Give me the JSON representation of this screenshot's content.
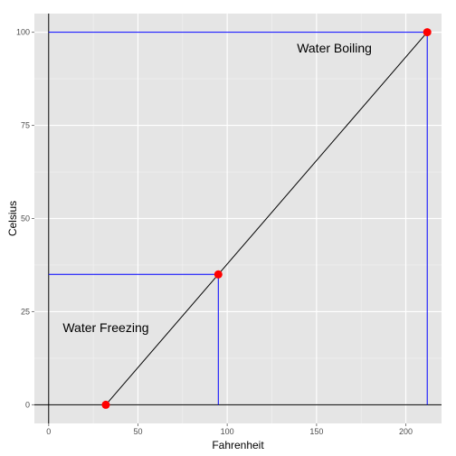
{
  "chart_data": {
    "type": "scatter",
    "title": "",
    "xlabel": "Fahrenheit",
    "ylabel": "Celsius",
    "xlim": [
      -8,
      220
    ],
    "ylim": [
      -5,
      105
    ],
    "x_ticks": [
      0,
      50,
      100,
      150,
      200
    ],
    "y_ticks": [
      0,
      25,
      50,
      75,
      100
    ],
    "x_tick_labels": [
      "0",
      "50",
      "100",
      "150",
      "200"
    ],
    "y_tick_labels": [
      "0",
      "25",
      "50",
      "75",
      "100"
    ],
    "grid": true,
    "background": "#e5e5e5",
    "point_color": "#ff0000",
    "guide_color": "#0000ff",
    "line_color": "#000000",
    "points": [
      {
        "x": 32,
        "y": 0
      },
      {
        "x": 95,
        "y": 35
      },
      {
        "x": 212,
        "y": 100
      }
    ],
    "line": [
      {
        "x": 32,
        "y": 0
      },
      {
        "x": 212,
        "y": 100
      }
    ],
    "zero_lines": {
      "x": 0,
      "y": 0
    },
    "guides": [
      {
        "x": 95,
        "y": 35
      },
      {
        "x": 212,
        "y": 100
      }
    ],
    "annotations": [
      {
        "text": "Water Freezing",
        "x": 32,
        "y": 19.5
      },
      {
        "text": "Water Boiling",
        "x": 160,
        "y": 94.5
      }
    ]
  }
}
